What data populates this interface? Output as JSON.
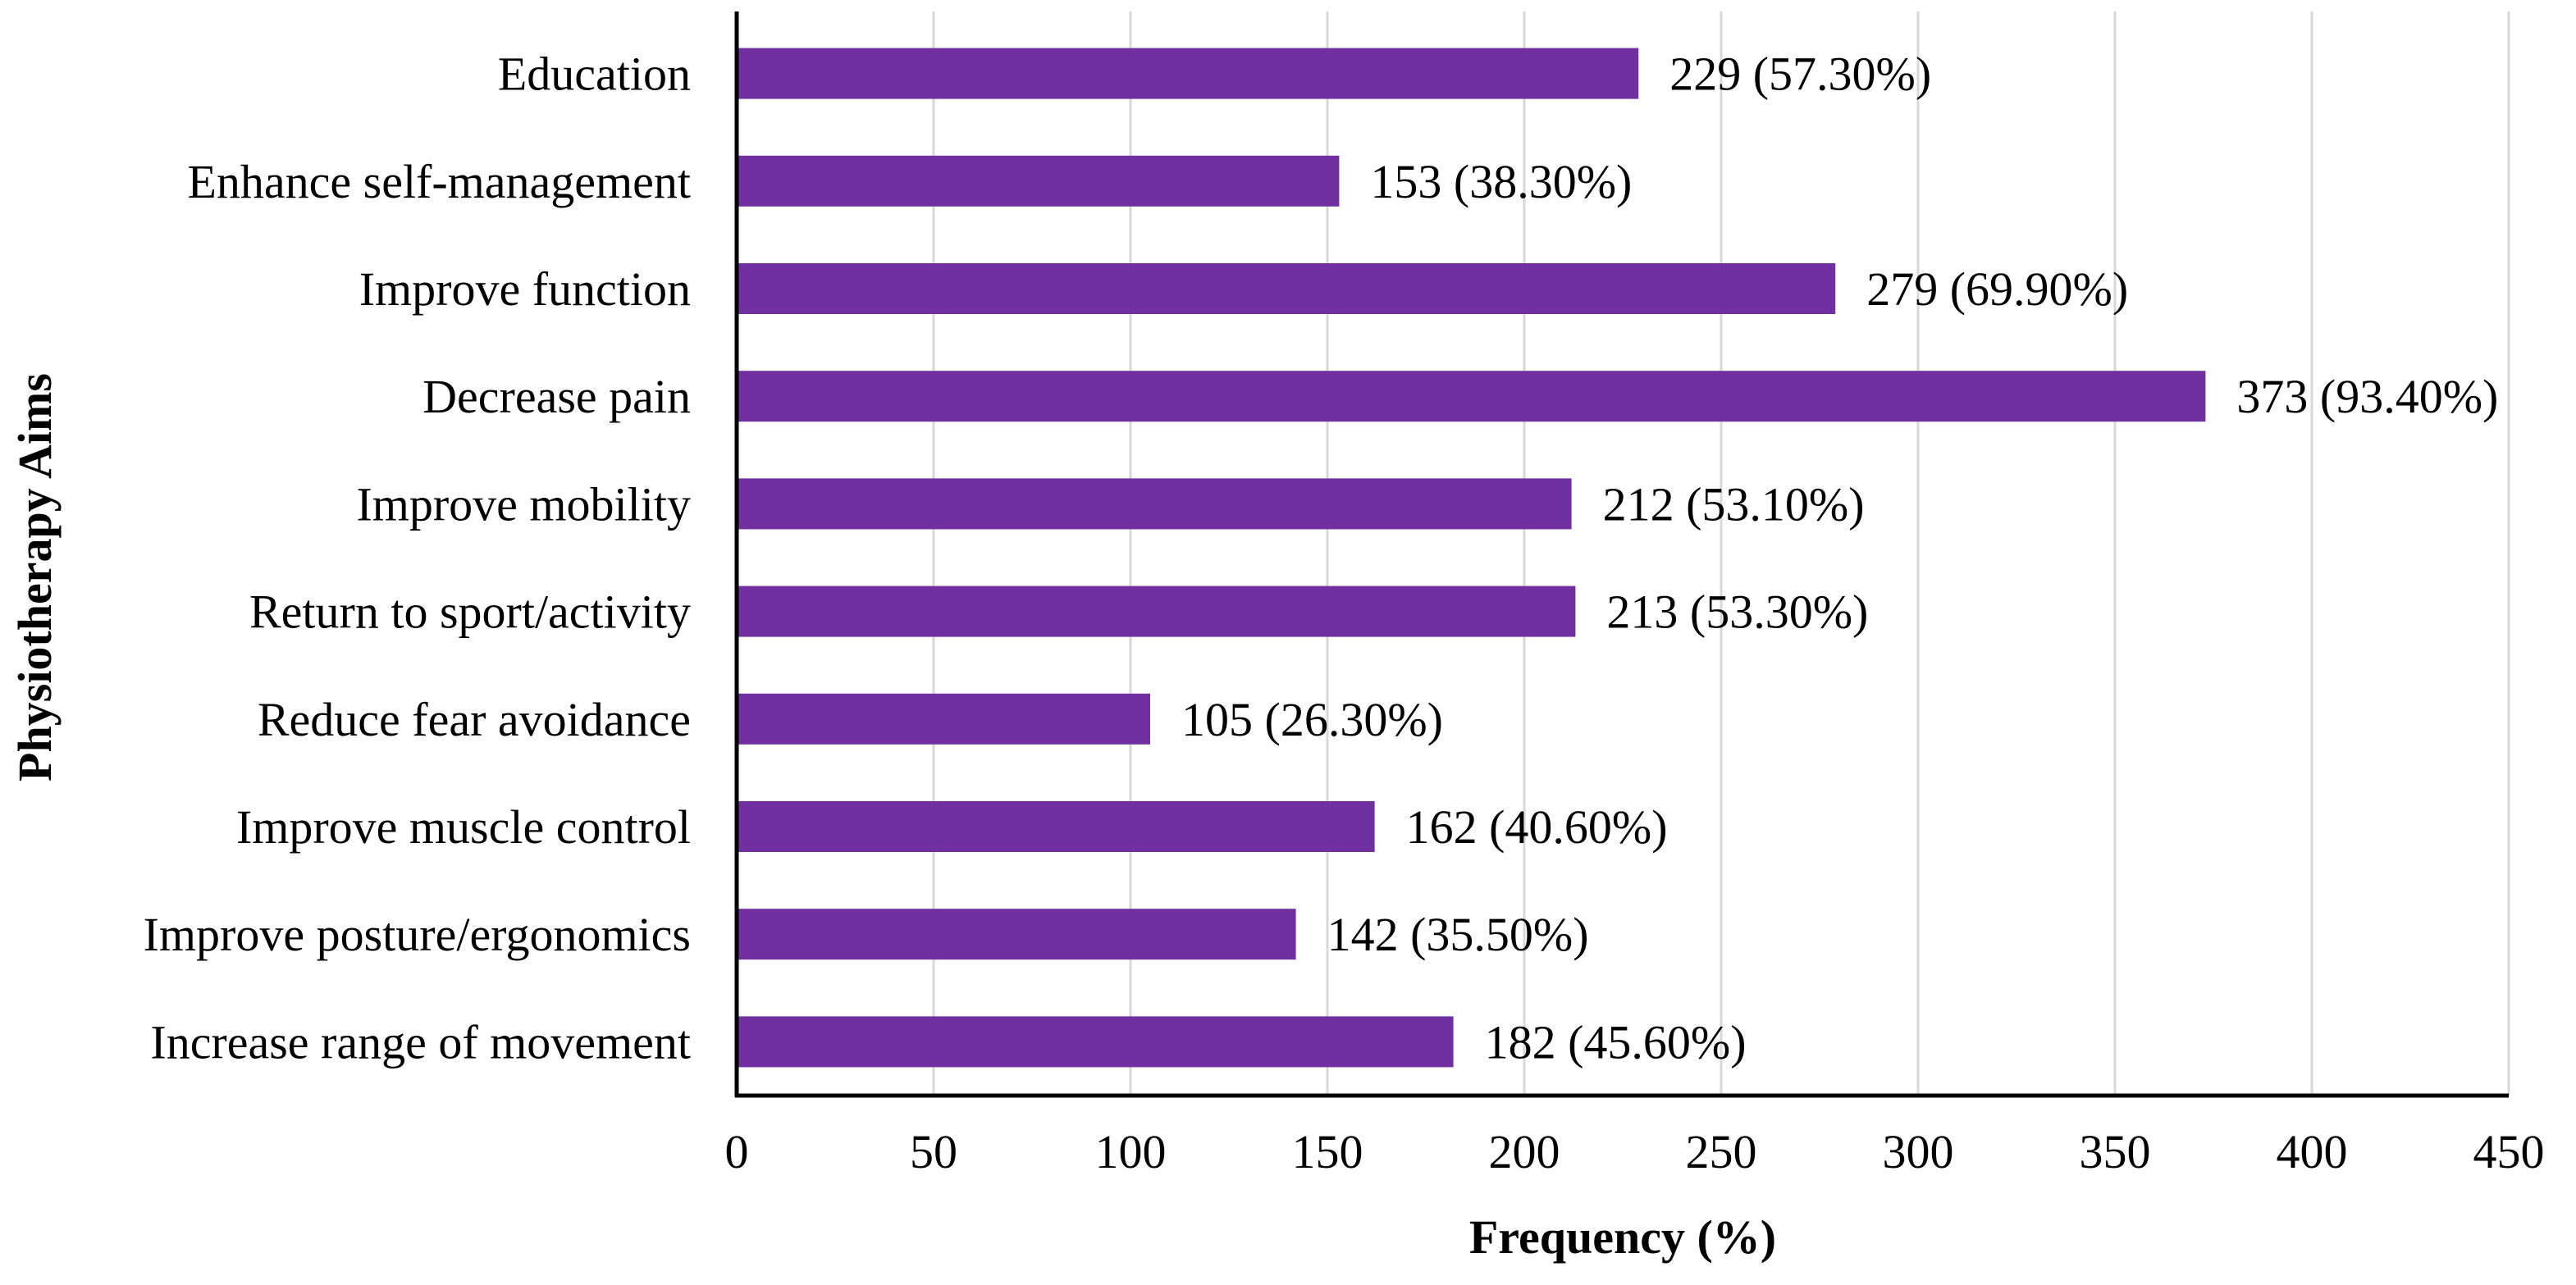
{
  "chart_data": {
    "type": "bar",
    "orientation": "horizontal",
    "title": "",
    "xlabel": "Frequency (%)",
    "ylabel": "Physiotherapy Aims",
    "xlim": [
      0,
      450
    ],
    "xticks": [
      0,
      50,
      100,
      150,
      200,
      250,
      300,
      350,
      400,
      450
    ],
    "grid": true,
    "categories": [
      "Education",
      "Enhance self-management",
      "Improve function",
      "Decrease pain",
      "Improve mobility",
      "Return to sport/activity",
      "Reduce fear avoidance",
      "Improve muscle control",
      "Improve posture/ergonomics",
      "Increase range of movement"
    ],
    "values": [
      229,
      153,
      279,
      373,
      212,
      213,
      105,
      162,
      142,
      182
    ],
    "data_labels": [
      "229 (57.30%)",
      "153 (38.30%)",
      "279 (69.90%)",
      "373 (93.40%)",
      "212 (53.10%)",
      "213 (53.30%)",
      "105 (26.30%)",
      "162 (40.60%)",
      "142 (35.50%)",
      "182 (45.60%)"
    ],
    "colors": {
      "bar": "#7030A0",
      "grid": "#D9D9D9",
      "axis": "#000000"
    }
  }
}
